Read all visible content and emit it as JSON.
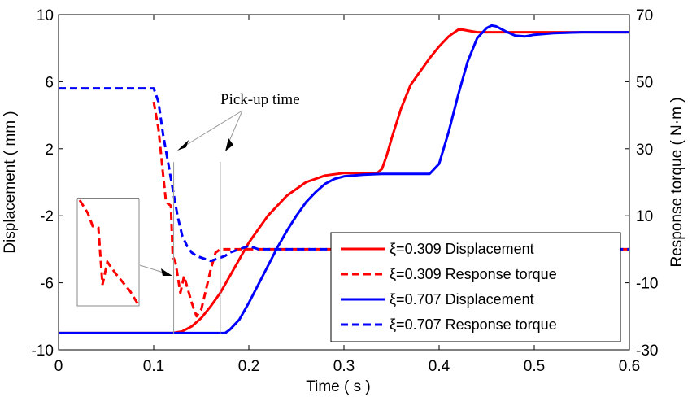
{
  "chart_data": {
    "type": "line",
    "xlabel": "Time ( s )",
    "ylabel_left": "Displacement ( mm )",
    "ylabel_right": "Response torque ( N·m )",
    "xlim": [
      0,
      0.6
    ],
    "ylim_left": [
      -10,
      10
    ],
    "ylim_right": [
      -30,
      70
    ],
    "x_ticks": [
      "0",
      "0.1",
      "0.2",
      "0.3",
      "0.4",
      "0.5",
      "0.6"
    ],
    "y_left_ticks": [
      "10",
      "6",
      "2",
      "-2",
      "-6",
      "-10"
    ],
    "y_right_ticks": [
      "70",
      "50",
      "30",
      "10",
      "-10",
      "-30"
    ],
    "grid": false,
    "legend_position": "bottom-right",
    "annotation": "Pick-up time",
    "series": [
      {
        "name": "ξ=0.309 Displacement",
        "axis": "left",
        "color": "#ff0000",
        "dash": "solid",
        "x": [
          0,
          0.05,
          0.1,
          0.12,
          0.13,
          0.14,
          0.15,
          0.16,
          0.17,
          0.18,
          0.19,
          0.2,
          0.22,
          0.24,
          0.26,
          0.28,
          0.3,
          0.32,
          0.335,
          0.34,
          0.345,
          0.35,
          0.36,
          0.37,
          0.38,
          0.39,
          0.4,
          0.41,
          0.42,
          0.425,
          0.43,
          0.44,
          0.46,
          0.5,
          0.55,
          0.6
        ],
        "y": [
          -9,
          -9,
          -9,
          -9,
          -8.9,
          -8.6,
          -8.1,
          -7.4,
          -6.6,
          -5.6,
          -4.6,
          -3.6,
          -2,
          -0.8,
          0,
          0.4,
          0.55,
          0.55,
          0.55,
          0.8,
          1.6,
          2.6,
          4.4,
          5.8,
          6.6,
          7.4,
          8.1,
          8.7,
          9.1,
          9.1,
          9.05,
          8.95,
          8.95,
          8.95,
          8.95,
          8.95
        ]
      },
      {
        "name": "ξ=0.309 Response torque",
        "axis": "right",
        "color": "#ff0000",
        "dash": "dashed",
        "x": [
          0.1,
          0.105,
          0.11,
          0.113,
          0.118,
          0.12,
          0.123,
          0.128,
          0.132,
          0.14,
          0.145,
          0.15,
          0.155,
          0.16,
          0.165,
          0.17,
          0.175,
          0.2,
          0.3,
          0.4,
          0.5,
          0.6
        ],
        "y": [
          44,
          36,
          22,
          14,
          13,
          -2,
          -4,
          -13,
          -8,
          -16,
          -20,
          -18,
          -12,
          -6,
          -1,
          0,
          0,
          0,
          0,
          0,
          0,
          0
        ]
      },
      {
        "name": "ξ=0.707 Displacement",
        "axis": "left",
        "color": "#0000ff",
        "dash": "solid",
        "x": [
          0,
          0.1,
          0.17,
          0.175,
          0.18,
          0.19,
          0.2,
          0.21,
          0.22,
          0.23,
          0.24,
          0.25,
          0.26,
          0.27,
          0.28,
          0.29,
          0.3,
          0.32,
          0.34,
          0.36,
          0.38,
          0.39,
          0.4,
          0.41,
          0.42,
          0.43,
          0.44,
          0.45,
          0.455,
          0.46,
          0.465,
          0.47,
          0.48,
          0.49,
          0.5,
          0.52,
          0.55,
          0.6
        ],
        "y": [
          -9,
          -9,
          -9,
          -9,
          -8.8,
          -8.2,
          -7.2,
          -6.1,
          -5,
          -3.9,
          -2.9,
          -2,
          -1.2,
          -0.6,
          -0.1,
          0.2,
          0.35,
          0.45,
          0.5,
          0.5,
          0.5,
          0.5,
          1.1,
          3,
          5.2,
          7.2,
          8.6,
          9.2,
          9.35,
          9.3,
          9.15,
          9,
          8.75,
          8.7,
          8.8,
          8.9,
          8.95,
          8.95
        ]
      },
      {
        "name": "ξ=0.707 Response torque",
        "axis": "right",
        "color": "#0000ff",
        "dash": "dashed",
        "x": [
          0,
          0.04,
          0.08,
          0.1,
          0.105,
          0.11,
          0.115,
          0.12,
          0.125,
          0.13,
          0.135,
          0.14,
          0.145,
          0.15,
          0.155,
          0.16,
          0.165,
          0.17,
          0.175,
          0.18,
          0.19,
          0.2,
          0.205,
          0.21,
          0.25,
          0.3,
          0.4,
          0.5,
          0.6
        ],
        "y": [
          48,
          48,
          48,
          48,
          44,
          34,
          26,
          18,
          10,
          4,
          1,
          -1,
          -2,
          -2.5,
          -3,
          -3.5,
          -3,
          -2.5,
          -2,
          -1,
          0,
          1,
          0.5,
          0,
          0,
          0,
          0,
          0,
          0
        ]
      }
    ]
  }
}
